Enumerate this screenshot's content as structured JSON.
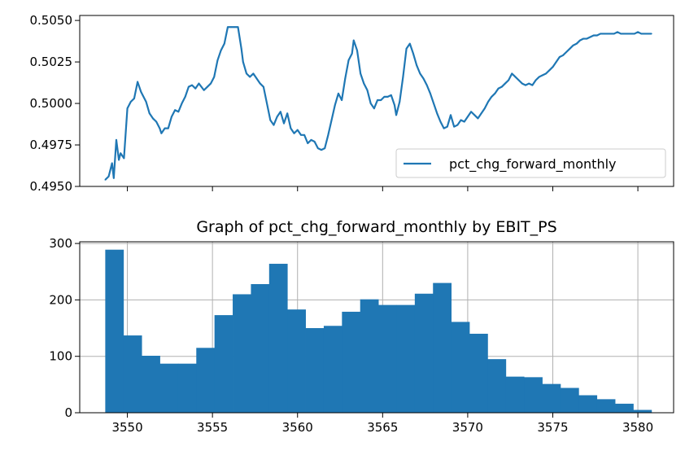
{
  "chart_data": [
    {
      "type": "line",
      "title": "",
      "xlabel": "",
      "ylabel": "",
      "ylim": [
        0.495,
        0.5053
      ],
      "xlim": [
        3547.2,
        3582.1
      ],
      "x_tick_values": [
        3550,
        3555,
        3560,
        3565,
        3570,
        3575,
        3580
      ],
      "x_tick_labels_visible": false,
      "y_ticks": [
        "0.4950",
        "0.4975",
        "0.5000",
        "0.5025",
        "0.5050"
      ],
      "grid": false,
      "legend": {
        "placement": "lower-right",
        "entries": [
          "pct_chg_forward_monthly"
        ]
      },
      "series": [
        {
          "name": "pct_chg_forward_monthly",
          "color": "#1f77b4",
          "x": [
            3548.7,
            3548.9,
            3549.1,
            3549.2,
            3549.35,
            3549.5,
            3549.6,
            3549.8,
            3550.0,
            3550.2,
            3550.4,
            3550.6,
            3550.8,
            3550.9,
            3551.1,
            3551.3,
            3551.5,
            3551.7,
            3551.9,
            3552.0,
            3552.2,
            3552.4,
            3552.6,
            3552.8,
            3553.0,
            3553.2,
            3553.4,
            3553.6,
            3553.8,
            3554.0,
            3554.2,
            3554.5,
            3554.7,
            3554.9,
            3555.1,
            3555.3,
            3555.5,
            3555.7,
            3555.9,
            3556.1,
            3556.3,
            3556.5,
            3556.7,
            3556.8,
            3557.0,
            3557.2,
            3557.4,
            3557.6,
            3557.8,
            3558.0,
            3558.2,
            3558.4,
            3558.6,
            3558.8,
            3559.0,
            3559.2,
            3559.4,
            3559.6,
            3559.8,
            3560.0,
            3560.2,
            3560.4,
            3560.6,
            3560.8,
            3561.0,
            3561.2,
            3561.4,
            3561.6,
            3561.8,
            3562.0,
            3562.2,
            3562.4,
            3562.6,
            3562.8,
            3563.0,
            3563.2,
            3563.3,
            3563.5,
            3563.7,
            3563.9,
            3564.1,
            3564.3,
            3564.5,
            3564.7,
            3564.9,
            3565.1,
            3565.3,
            3565.5,
            3565.7,
            3565.8,
            3566.0,
            3566.2,
            3566.4,
            3566.6,
            3566.8,
            3567.0,
            3567.2,
            3567.4,
            3567.6,
            3567.8,
            3568.0,
            3568.2,
            3568.4,
            3568.6,
            3568.8,
            3569.0,
            3569.2,
            3569.4,
            3569.6,
            3569.8,
            3570.0,
            3570.2,
            3570.4,
            3570.6,
            3570.8,
            3571.0,
            3571.2,
            3571.4,
            3571.6,
            3571.8,
            3572.0,
            3572.2,
            3572.4,
            3572.6,
            3572.8,
            3573.0,
            3573.2,
            3573.4,
            3573.6,
            3573.8,
            3574.0,
            3574.2,
            3574.4,
            3574.6,
            3574.8,
            3575.0,
            3575.2,
            3575.4,
            3575.6,
            3575.8,
            3576.0,
            3576.2,
            3576.4,
            3576.6,
            3576.8,
            3577.0,
            3577.2,
            3577.4,
            3577.6,
            3577.8,
            3578.0,
            3578.2,
            3578.4,
            3578.6,
            3578.8,
            3579.0,
            3579.2,
            3579.4,
            3579.6,
            3579.8,
            3580.0,
            3580.2,
            3580.4,
            3580.6,
            3580.8
          ],
          "y": [
            0.4954,
            0.4956,
            0.4964,
            0.4955,
            0.4978,
            0.4966,
            0.497,
            0.4967,
            0.4997,
            0.5001,
            0.5003,
            0.5013,
            0.5007,
            0.5005,
            0.5001,
            0.4994,
            0.4991,
            0.4989,
            0.4985,
            0.4982,
            0.4985,
            0.4985,
            0.4992,
            0.4996,
            0.4995,
            0.5,
            0.5004,
            0.501,
            0.5011,
            0.5009,
            0.5012,
            0.5008,
            0.501,
            0.5012,
            0.5016,
            0.5026,
            0.5032,
            0.5036,
            0.5046,
            0.5046,
            0.5046,
            0.5046,
            0.5033,
            0.5025,
            0.5018,
            0.5016,
            0.5018,
            0.5015,
            0.5012,
            0.501,
            0.5,
            0.499,
            0.4987,
            0.4992,
            0.4995,
            0.4988,
            0.4994,
            0.4985,
            0.4982,
            0.4984,
            0.4981,
            0.4981,
            0.4976,
            0.4978,
            0.4977,
            0.4973,
            0.4972,
            0.4973,
            0.4981,
            0.499,
            0.4999,
            0.5006,
            0.5002,
            0.5015,
            0.5026,
            0.503,
            0.5038,
            0.5032,
            0.5018,
            0.5012,
            0.5008,
            0.5,
            0.4997,
            0.5002,
            0.5002,
            0.5004,
            0.5004,
            0.5005,
            0.4999,
            0.4993,
            0.5001,
            0.5016,
            0.5033,
            0.5036,
            0.503,
            0.5023,
            0.5018,
            0.5015,
            0.5011,
            0.5006,
            0.5,
            0.4994,
            0.4989,
            0.4985,
            0.4986,
            0.4993,
            0.4986,
            0.4987,
            0.499,
            0.4989,
            0.4992,
            0.4995,
            0.4993,
            0.4991,
            0.4994,
            0.4997,
            0.5001,
            0.5004,
            0.5006,
            0.5009,
            0.501,
            0.5012,
            0.5014,
            0.5018,
            0.5016,
            0.5014,
            0.5012,
            0.5011,
            0.5012,
            0.5011,
            0.5014,
            0.5016,
            0.5017,
            0.5018,
            0.502,
            0.5022,
            0.5025,
            0.5028,
            0.5029,
            0.5031,
            0.5033,
            0.5035,
            0.5036,
            0.5038,
            0.5039,
            0.5039,
            0.504,
            0.5041,
            0.5041,
            0.5042,
            0.5042,
            0.5042,
            0.5042,
            0.5042,
            0.5043,
            0.5042,
            0.5042,
            0.5042,
            0.5042,
            0.5042,
            0.5043,
            0.5042,
            0.5042,
            0.5042,
            0.5042
          ]
        }
      ]
    },
    {
      "type": "bar",
      "title": "Graph of pct_chg_forward_monthly by EBIT_PS",
      "xlabel": "",
      "ylabel": "",
      "ylim": [
        0,
        303
      ],
      "xlim": [
        3547.2,
        3582.1
      ],
      "x_ticks": [
        "3550",
        "3555",
        "3560",
        "3565",
        "3570",
        "3575",
        "3580"
      ],
      "x_tick_values": [
        3550,
        3555,
        3560,
        3565,
        3570,
        3575,
        3580
      ],
      "y_ticks": [
        "0",
        "100",
        "200",
        "300"
      ],
      "grid": true,
      "color": "#1f77b4",
      "bin_start": 3548.7,
      "bin_end": 3580.8,
      "values": [
        289,
        137,
        101,
        87,
        87,
        115,
        173,
        210,
        228,
        264,
        183,
        150,
        154,
        179,
        201,
        191,
        191,
        211,
        230,
        161,
        140,
        95,
        64,
        63,
        51,
        44,
        31,
        24,
        16,
        5
      ]
    }
  ]
}
